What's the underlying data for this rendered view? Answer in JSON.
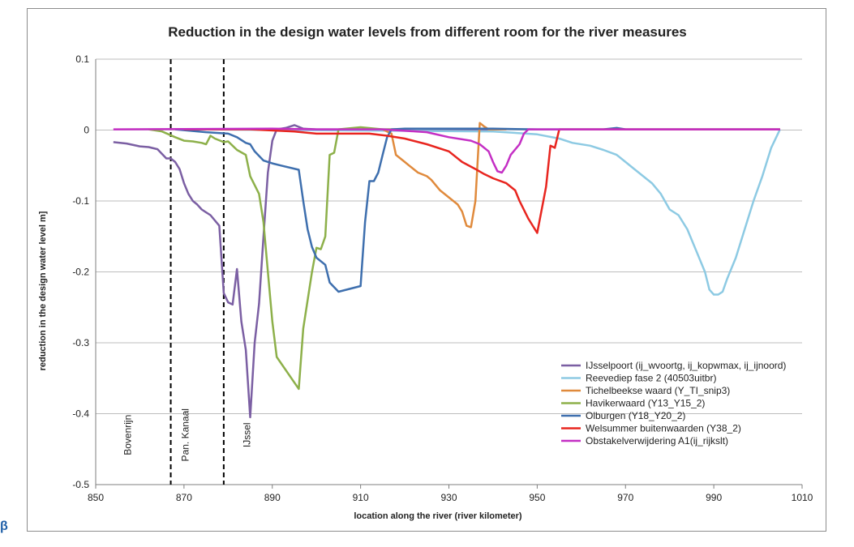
{
  "chart_data": {
    "type": "line",
    "title": "Reduction in the design water levels from different room for the river measures",
    "xlabel": "location along the river (river kilometer)",
    "ylabel": "reduction in the design water level m]",
    "xlim": [
      850,
      1010
    ],
    "ylim": [
      -0.5,
      0.1
    ],
    "xticks": [
      "850",
      "870",
      "890",
      "910",
      "930",
      "950",
      "970",
      "990",
      "1010"
    ],
    "yticks": [
      "0.1",
      "0",
      "-0.1",
      "-0.2",
      "-0.3",
      "-0.4",
      "-0.5"
    ],
    "grid": "horizontal",
    "legend_position": "bottom-right",
    "reference_lines": [
      867,
      879
    ],
    "annotations": [
      {
        "text": "Bovenrijn",
        "x": 858,
        "y": -0.43
      },
      {
        "text": "Pan. Kanaal",
        "x": 871,
        "y": -0.43
      },
      {
        "text": "IJssel",
        "x": 885,
        "y": -0.43
      }
    ],
    "series": [
      {
        "name": "IJsselpoort (ij_wvoortg, ij_kopwmax, ij_ijnoord)",
        "color": "#7b5fa3",
        "points": [
          [
            854,
            -0.017
          ],
          [
            857,
            -0.019
          ],
          [
            860,
            -0.023
          ],
          [
            862,
            -0.024
          ],
          [
            864,
            -0.027
          ],
          [
            866,
            -0.04
          ],
          [
            867,
            -0.04
          ],
          [
            868,
            -0.045
          ],
          [
            869,
            -0.055
          ],
          [
            870,
            -0.075
          ],
          [
            871,
            -0.09
          ],
          [
            872,
            -0.1
          ],
          [
            873,
            -0.105
          ],
          [
            874,
            -0.112
          ],
          [
            876,
            -0.12
          ],
          [
            878,
            -0.135
          ],
          [
            879,
            -0.23
          ],
          [
            880,
            -0.243
          ],
          [
            881,
            -0.246
          ],
          [
            882,
            -0.196
          ],
          [
            883,
            -0.27
          ],
          [
            884,
            -0.31
          ],
          [
            885,
            -0.405
          ],
          [
            886,
            -0.3
          ],
          [
            887,
            -0.245
          ],
          [
            888,
            -0.15
          ],
          [
            889,
            -0.06
          ],
          [
            890,
            -0.015
          ],
          [
            891,
            0.001
          ],
          [
            893,
            0.003
          ],
          [
            895,
            0.007
          ],
          [
            897,
            0.002
          ],
          [
            900,
            0.001
          ],
          [
            920,
            0.001
          ],
          [
            943,
            0.001
          ]
        ]
      },
      {
        "name": "Reevediep fase 2 (40503uitbr)",
        "color": "#8dcae3",
        "points": [
          [
            870,
            0.001
          ],
          [
            940,
            -0.002
          ],
          [
            950,
            -0.006
          ],
          [
            955,
            -0.012
          ],
          [
            958,
            -0.018
          ],
          [
            962,
            -0.022
          ],
          [
            965,
            -0.028
          ],
          [
            968,
            -0.035
          ],
          [
            970,
            -0.045
          ],
          [
            972,
            -0.055
          ],
          [
            974,
            -0.065
          ],
          [
            976,
            -0.075
          ],
          [
            978,
            -0.09
          ],
          [
            980,
            -0.112
          ],
          [
            982,
            -0.12
          ],
          [
            984,
            -0.14
          ],
          [
            986,
            -0.17
          ],
          [
            988,
            -0.2
          ],
          [
            989,
            -0.225
          ],
          [
            990,
            -0.232
          ],
          [
            991,
            -0.232
          ],
          [
            992,
            -0.228
          ],
          [
            993,
            -0.21
          ],
          [
            995,
            -0.18
          ],
          [
            997,
            -0.14
          ],
          [
            999,
            -0.1
          ],
          [
            1001,
            -0.065
          ],
          [
            1003,
            -0.025
          ],
          [
            1005,
            0.001
          ]
        ]
      },
      {
        "name": "Tichelbeekse waard (Y_TI_snip3)",
        "color": "#e08a3c",
        "points": [
          [
            915,
            0.001
          ],
          [
            917,
            -0.005
          ],
          [
            918,
            -0.035
          ],
          [
            920,
            -0.045
          ],
          [
            921,
            -0.05
          ],
          [
            923,
            -0.06
          ],
          [
            925,
            -0.065
          ],
          [
            926,
            -0.07
          ],
          [
            928,
            -0.085
          ],
          [
            930,
            -0.095
          ],
          [
            932,
            -0.105
          ],
          [
            933,
            -0.115
          ],
          [
            934,
            -0.135
          ],
          [
            935,
            -0.137
          ],
          [
            936,
            -0.1
          ],
          [
            937,
            0.01
          ],
          [
            938,
            0.005
          ],
          [
            939,
            0.001
          ],
          [
            943,
            0.001
          ]
        ]
      },
      {
        "name": "Havikerwaard (Y13_Y15_2)",
        "color": "#8db04a",
        "points": [
          [
            862,
            0.001
          ],
          [
            865,
            -0.002
          ],
          [
            868,
            -0.01
          ],
          [
            870,
            -0.015
          ],
          [
            872,
            -0.016
          ],
          [
            874,
            -0.018
          ],
          [
            875,
            -0.02
          ],
          [
            876,
            -0.008
          ],
          [
            877,
            -0.012
          ],
          [
            879,
            -0.017
          ],
          [
            880,
            -0.016
          ],
          [
            881,
            -0.022
          ],
          [
            882,
            -0.028
          ],
          [
            884,
            -0.035
          ],
          [
            885,
            -0.065
          ],
          [
            887,
            -0.09
          ],
          [
            888,
            -0.13
          ],
          [
            889,
            -0.2
          ],
          [
            890,
            -0.27
          ],
          [
            891,
            -0.32
          ],
          [
            896,
            -0.365
          ],
          [
            897,
            -0.28
          ],
          [
            899,
            -0.2
          ],
          [
            900,
            -0.166
          ],
          [
            901,
            -0.168
          ],
          [
            902,
            -0.15
          ],
          [
            903,
            -0.035
          ],
          [
            904,
            -0.032
          ],
          [
            905,
            0.001
          ],
          [
            910,
            0.004
          ],
          [
            915,
            0.001
          ],
          [
            918,
            0.001
          ]
        ]
      },
      {
        "name": "Olburgen (Y18_Y20_2)",
        "color": "#3e6fae",
        "points": [
          [
            868,
            0.001
          ],
          [
            875,
            -0.003
          ],
          [
            880,
            -0.005
          ],
          [
            882,
            -0.01
          ],
          [
            884,
            -0.018
          ],
          [
            885,
            -0.02
          ],
          [
            886,
            -0.03
          ],
          [
            888,
            -0.043
          ],
          [
            890,
            -0.047
          ],
          [
            892,
            -0.05
          ],
          [
            896,
            -0.056
          ],
          [
            897,
            -0.1
          ],
          [
            898,
            -0.14
          ],
          [
            899,
            -0.165
          ],
          [
            900,
            -0.18
          ],
          [
            902,
            -0.19
          ],
          [
            903,
            -0.215
          ],
          [
            905,
            -0.228
          ],
          [
            910,
            -0.22
          ],
          [
            911,
            -0.13
          ],
          [
            912,
            -0.072
          ],
          [
            913,
            -0.072
          ],
          [
            914,
            -0.06
          ],
          [
            915,
            -0.035
          ],
          [
            916,
            -0.01
          ],
          [
            917,
            0.001
          ],
          [
            920,
            0.002
          ],
          [
            940,
            0.002
          ],
          [
            950,
            0.001
          ],
          [
            955,
            0.001
          ],
          [
            960,
            0.001
          ],
          [
            965,
            0.001
          ],
          [
            968,
            0.003
          ],
          [
            970,
            0.001
          ],
          [
            1000,
            0.001
          ],
          [
            1005,
            0.001
          ]
        ]
      },
      {
        "name": "Welsummer buitenwaarden (Y38_2)",
        "color": "#e8251f",
        "points": [
          [
            870,
            0.001
          ],
          [
            885,
            0.001
          ],
          [
            895,
            -0.002
          ],
          [
            900,
            -0.005
          ],
          [
            905,
            -0.005
          ],
          [
            912,
            -0.005
          ],
          [
            916,
            -0.008
          ],
          [
            920,
            -0.012
          ],
          [
            925,
            -0.02
          ],
          [
            930,
            -0.03
          ],
          [
            933,
            -0.045
          ],
          [
            936,
            -0.055
          ],
          [
            938,
            -0.062
          ],
          [
            940,
            -0.068
          ],
          [
            943,
            -0.075
          ],
          [
            945,
            -0.085
          ],
          [
            946,
            -0.1
          ],
          [
            948,
            -0.125
          ],
          [
            949,
            -0.135
          ],
          [
            950,
            -0.145
          ],
          [
            952,
            -0.08
          ],
          [
            953,
            -0.022
          ],
          [
            954,
            -0.025
          ],
          [
            955,
            0.001
          ],
          [
            960,
            0.001
          ],
          [
            1005,
            0.001
          ]
        ]
      },
      {
        "name": "Obstakelverwijdering A1(ij_rijkslt)",
        "color": "#c42fc4",
        "points": [
          [
            854,
            0.001
          ],
          [
            890,
            0.002
          ],
          [
            900,
            0.001
          ],
          [
            915,
            0.001
          ],
          [
            925,
            -0.003
          ],
          [
            930,
            -0.01
          ],
          [
            935,
            -0.015
          ],
          [
            937,
            -0.02
          ],
          [
            939,
            -0.03
          ],
          [
            940,
            -0.045
          ],
          [
            941,
            -0.058
          ],
          [
            942,
            -0.06
          ],
          [
            943,
            -0.05
          ],
          [
            944,
            -0.035
          ],
          [
            946,
            -0.02
          ],
          [
            947,
            -0.005
          ],
          [
            948,
            0.001
          ],
          [
            960,
            0.001
          ],
          [
            980,
            0.001
          ],
          [
            1005,
            0.001
          ]
        ]
      }
    ]
  }
}
